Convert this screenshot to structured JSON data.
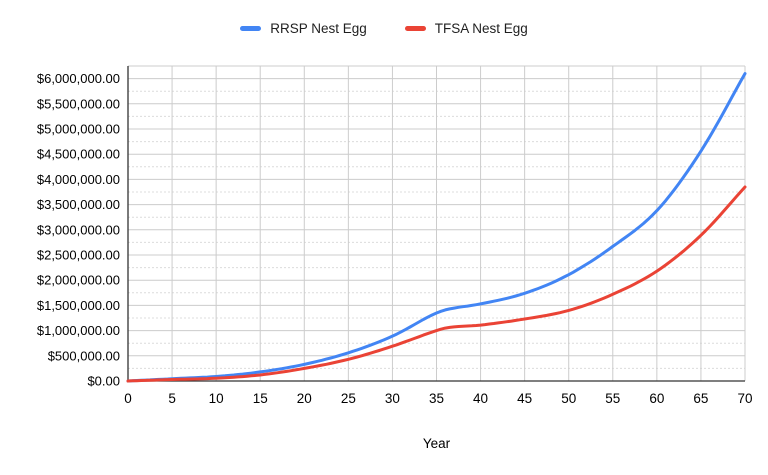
{
  "legend": {
    "items": [
      {
        "label": "RRSP Nest Egg",
        "color": "#4285F4"
      },
      {
        "label": "TFSA Nest Egg",
        "color": "#EA4335"
      }
    ]
  },
  "chart_data": {
    "type": "line",
    "title": "",
    "xlabel": "Year",
    "ylabel": "",
    "xlim": [
      0,
      70
    ],
    "ylim": [
      0,
      6250000
    ],
    "legend_position": "top",
    "grid": "on",
    "x": [
      0,
      5,
      10,
      15,
      20,
      25,
      30,
      35,
      36,
      40,
      45,
      50,
      55,
      60,
      65,
      70
    ],
    "series": [
      {
        "name": "RRSP Nest Egg",
        "color": "#4285F4",
        "values": [
          0,
          45000,
          90000,
          180000,
          330000,
          560000,
          890000,
          1350000,
          1410000,
          1530000,
          1740000,
          2110000,
          2670000,
          3380000,
          4560000,
          6100000
        ]
      },
      {
        "name": "TFSA Nest Egg",
        "color": "#EA4335",
        "values": [
          0,
          30000,
          55000,
          120000,
          250000,
          430000,
          690000,
          1000000,
          1050000,
          1110000,
          1230000,
          1400000,
          1720000,
          2180000,
          2890000,
          3850000
        ]
      }
    ],
    "x_ticks": [
      "0",
      "5",
      "10",
      "15",
      "20",
      "25",
      "30",
      "35",
      "40",
      "45",
      "50",
      "55",
      "60",
      "65",
      "70"
    ],
    "y_ticks": [
      {
        "value": 0,
        "label": "$0.00"
      },
      {
        "value": 500000,
        "label": "$500,000.00"
      },
      {
        "value": 1000000,
        "label": "$1,000,000.00"
      },
      {
        "value": 1500000,
        "label": "$1,500,000.00"
      },
      {
        "value": 2000000,
        "label": "$2,000,000.00"
      },
      {
        "value": 2500000,
        "label": "$2,500,000.00"
      },
      {
        "value": 3000000,
        "label": "$3,000,000.00"
      },
      {
        "value": 3500000,
        "label": "$3,500,000.00"
      },
      {
        "value": 4000000,
        "label": "$4,000,000.00"
      },
      {
        "value": 4500000,
        "label": "$4,500,000.00"
      },
      {
        "value": 5000000,
        "label": "$5,000,000.00"
      },
      {
        "value": 5500000,
        "label": "$5,500,000.00"
      },
      {
        "value": 6000000,
        "label": "$6,000,000.00"
      }
    ],
    "y_major_step": 500000,
    "y_minor_step": 250000
  },
  "colors": {
    "major_grid": "#cccccc",
    "minor_grid": "#dcdcdc",
    "axis_line": "#333333",
    "tick_text": "#000000",
    "background": "#ffffff"
  }
}
